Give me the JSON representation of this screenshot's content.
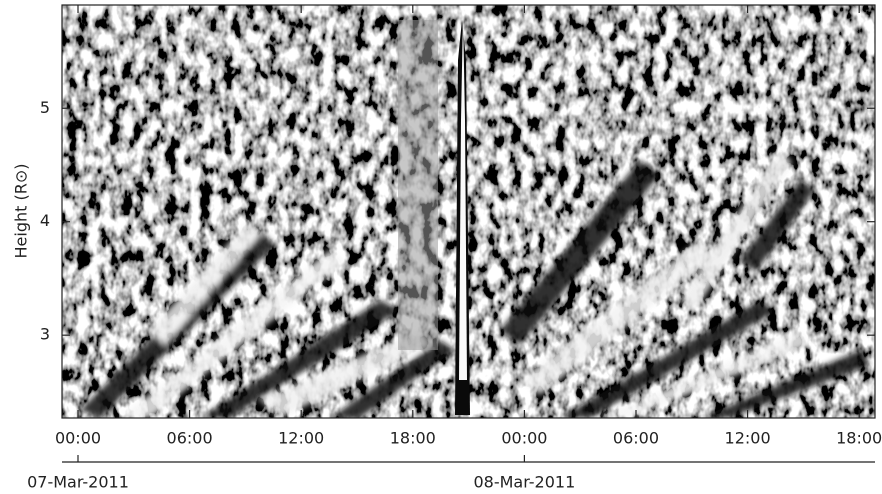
{
  "chart_data": {
    "type": "heatmap",
    "ylabel": "Height (R⊙)",
    "xlim": [
      -0.86,
      42.85
    ],
    "xticks": [
      {
        "value": 0,
        "label": "00:00"
      },
      {
        "value": 6,
        "label": "06:00"
      },
      {
        "value": 12,
        "label": "12:00"
      },
      {
        "value": 18,
        "label": "18:00"
      },
      {
        "value": 24,
        "label": "00:00"
      },
      {
        "value": 30,
        "label": "06:00"
      },
      {
        "value": 36,
        "label": "12:00"
      },
      {
        "value": 42,
        "label": "18:00"
      }
    ],
    "dateticks": [
      {
        "value": 0,
        "label": "07-Mar-2011"
      },
      {
        "value": 24,
        "label": "08-Mar-2011"
      }
    ],
    "ylim": [
      2.27,
      5.91
    ],
    "yticks": [
      3,
      4,
      5
    ]
  }
}
